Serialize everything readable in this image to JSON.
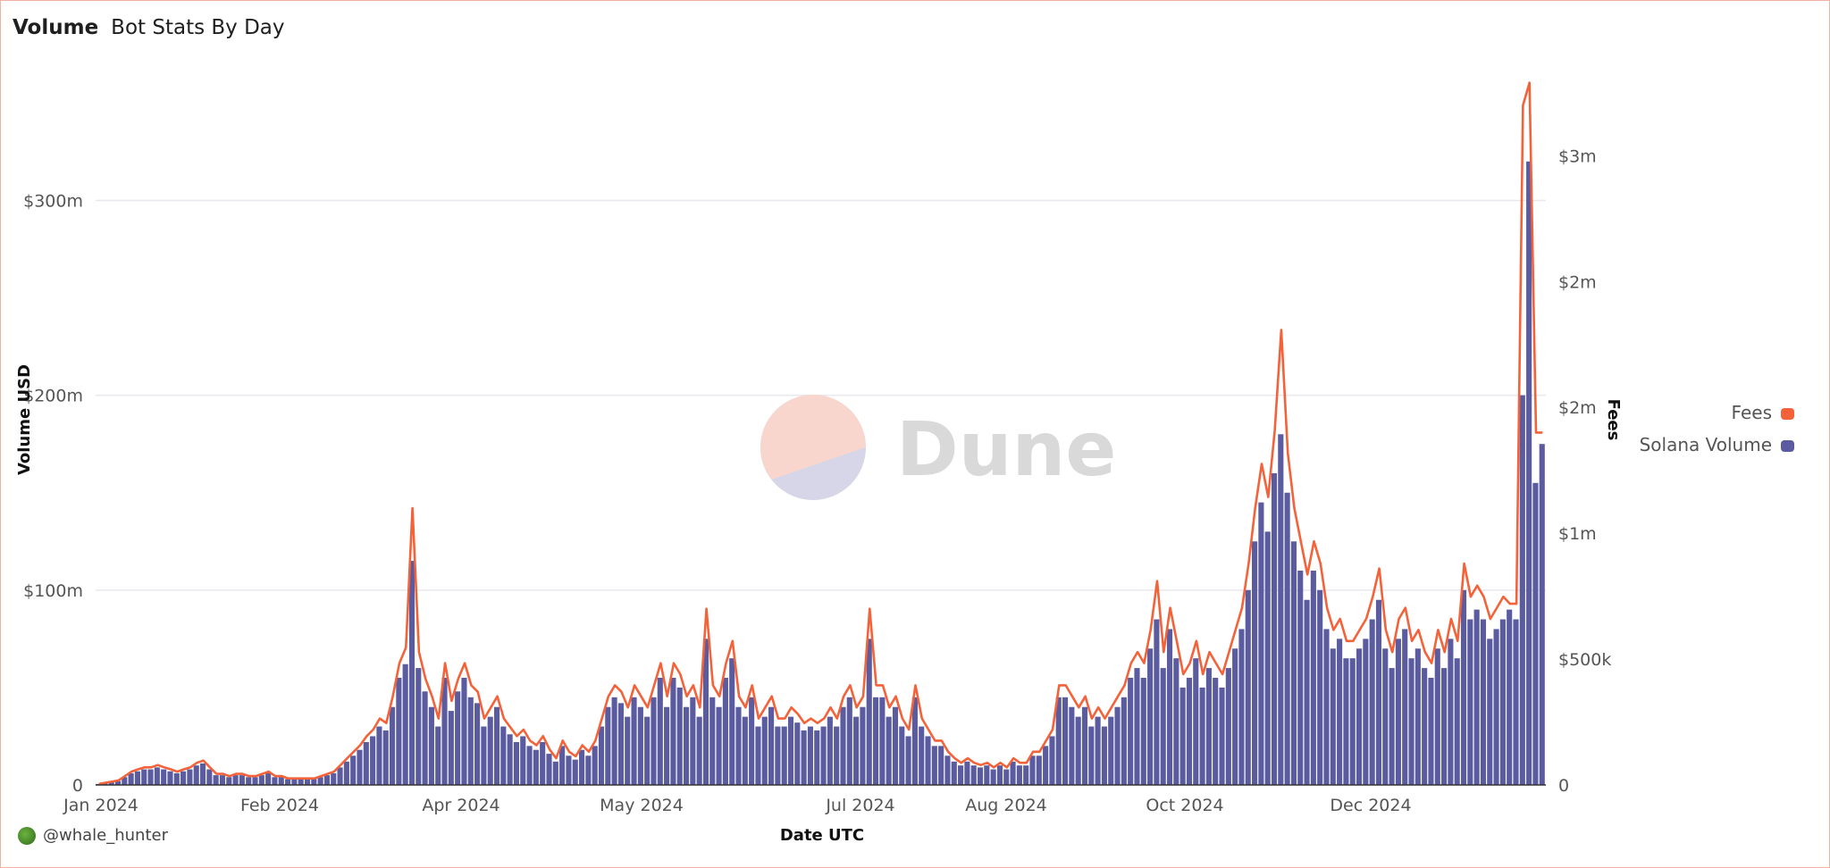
{
  "header": {
    "title": "Volume",
    "subtitle": "Bot Stats By Day"
  },
  "footer": {
    "author": "@whale_hunter"
  },
  "watermark": "Dune",
  "colors": {
    "fees": "#f4623a",
    "volume": "#5b5b9f",
    "grid": "#e8e8ee"
  },
  "chart_data": {
    "type": "bar+line",
    "xlabel": "Date UTC",
    "ylabel": "Volume USD",
    "y2label": "Fees",
    "x_range": [
      "2024-01-01",
      "2025-01-20"
    ],
    "x_tick_labels": [
      "Jan 2024",
      "Feb 2024",
      "Apr 2024",
      "May 2024",
      "Jul 2024",
      "Aug 2024",
      "Oct 2024",
      "Dec 2024"
    ],
    "ylim": [
      0,
      363
    ],
    "y_ticks": [
      0,
      100,
      200,
      300
    ],
    "y_tick_labels": [
      "0",
      "$100m",
      "$200m",
      "$300m"
    ],
    "y2lim": [
      0,
      2.81
    ],
    "y2_ticks": [
      0,
      0.5,
      1,
      1.5,
      2,
      2.5
    ],
    "y2_tick_labels": [
      "0",
      "$500k",
      "$1m",
      "$2m",
      "$2m",
      "$3m"
    ],
    "grid": true,
    "legend_placement": "right",
    "series": [
      {
        "name": "Fees",
        "type": "line",
        "axis": "right",
        "unit": "$k",
        "values": [
          4,
          9,
          13,
          18,
          35,
          53,
          62,
          70,
          70,
          79,
          70,
          62,
          53,
          62,
          70,
          88,
          97,
          70,
          44,
          44,
          35,
          44,
          44,
          35,
          35,
          44,
          53,
          35,
          35,
          26,
          26,
          26,
          26,
          26,
          35,
          44,
          53,
          79,
          106,
          132,
          158,
          194,
          220,
          264,
          246,
          352,
          484,
          546,
          1100,
          528,
          422,
          352,
          264,
          484,
          334,
          422,
          484,
          396,
          370,
          264,
          308,
          352,
          264,
          229,
          194,
          220,
          176,
          158,
          194,
          141,
          106,
          176,
          132,
          114,
          158,
          132,
          176,
          264,
          352,
          396,
          370,
          308,
          396,
          352,
          308,
          396,
          484,
          352,
          484,
          440,
          352,
          396,
          308,
          700,
          396,
          352,
          484,
          572,
          352,
          308,
          396,
          264,
          308,
          352,
          264,
          264,
          308,
          282,
          246,
          264,
          246,
          264,
          308,
          264,
          352,
          396,
          308,
          352,
          700,
          396,
          396,
          308,
          352,
          264,
          220,
          396,
          264,
          220,
          176,
          176,
          132,
          106,
          88,
          106,
          88,
          79,
          88,
          70,
          88,
          70,
          106,
          88,
          88,
          132,
          132,
          176,
          220,
          396,
          396,
          352,
          308,
          352,
          264,
          308,
          264,
          308,
          352,
          396,
          484,
          528,
          484,
          616,
          810,
          528,
          704,
          572,
          440,
          484,
          572,
          440,
          528,
          484,
          440,
          528,
          616,
          704,
          880,
          1100,
          1276,
          1144,
          1408,
          1808,
          1320,
          1100,
          968,
          836,
          968,
          880,
          704,
          616,
          660,
          572,
          572,
          616,
          660,
          748,
          860,
          616,
          528,
          660,
          704,
          572,
          616,
          528,
          484,
          616,
          528,
          660,
          572,
          880,
          748,
          792,
          748,
          660,
          704,
          748,
          720,
          720,
          2700,
          2790,
          1400,
          1400
        ]
      },
      {
        "name": "Solana Volume",
        "type": "bar",
        "axis": "left",
        "unit": "$m",
        "values": [
          0.5,
          1,
          1.5,
          2,
          4,
          6,
          7,
          8,
          8,
          9,
          8,
          7,
          6,
          7,
          8,
          10,
          11,
          8,
          5,
          5,
          4,
          5,
          5,
          4,
          4,
          5,
          6,
          4,
          4,
          3,
          3,
          3,
          3,
          3,
          4,
          5,
          6,
          9,
          12,
          15,
          18,
          22,
          25,
          30,
          28,
          40,
          55,
          62,
          115,
          60,
          48,
          40,
          30,
          55,
          38,
          48,
          55,
          45,
          42,
          30,
          35,
          40,
          30,
          26,
          22,
          25,
          20,
          18,
          22,
          16,
          12,
          20,
          15,
          13,
          18,
          15,
          20,
          30,
          40,
          45,
          42,
          35,
          45,
          40,
          35,
          45,
          55,
          40,
          55,
          50,
          40,
          45,
          35,
          75,
          45,
          40,
          55,
          65,
          40,
          35,
          45,
          30,
          35,
          40,
          30,
          30,
          35,
          32,
          28,
          30,
          28,
          30,
          35,
          30,
          40,
          45,
          35,
          40,
          75,
          45,
          45,
          35,
          40,
          30,
          25,
          45,
          30,
          25,
          20,
          20,
          15,
          12,
          10,
          12,
          10,
          9,
          10,
          8,
          10,
          8,
          12,
          10,
          10,
          15,
          15,
          20,
          25,
          45,
          45,
          40,
          35,
          40,
          30,
          35,
          30,
          35,
          40,
          45,
          55,
          60,
          55,
          70,
          85,
          60,
          80,
          65,
          50,
          55,
          65,
          50,
          60,
          55,
          50,
          60,
          70,
          80,
          100,
          125,
          145,
          130,
          160,
          180,
          150,
          125,
          110,
          95,
          110,
          100,
          80,
          70,
          75,
          65,
          65,
          70,
          75,
          85,
          95,
          70,
          60,
          75,
          80,
          65,
          70,
          60,
          55,
          70,
          60,
          75,
          65,
          100,
          85,
          90,
          85,
          75,
          80,
          85,
          90,
          85,
          200,
          320,
          155,
          175
        ]
      }
    ]
  }
}
